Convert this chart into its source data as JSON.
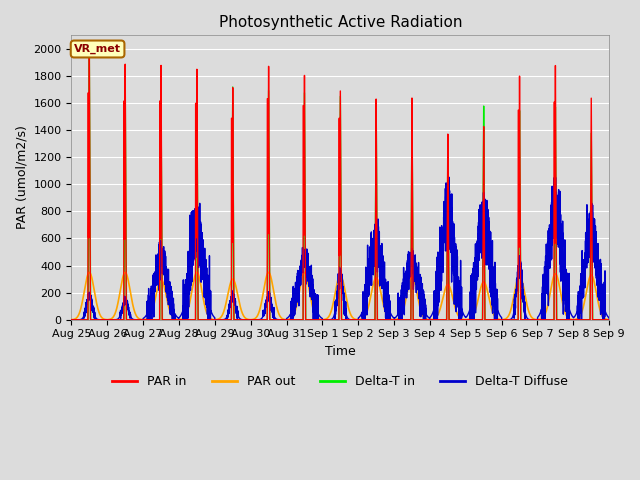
{
  "title": "Photosynthetic Active Radiation",
  "ylabel": "PAR (umol/m2/s)",
  "xlabel": "Time",
  "annotation": "VR_met",
  "legend_labels": [
    "PAR in",
    "PAR out",
    "Delta-T in",
    "Delta-T Diffuse"
  ],
  "background_color": "#dcdcdc",
  "ylim": [
    0,
    2100
  ],
  "figsize": [
    6.4,
    4.8
  ],
  "dpi": 100,
  "x_tick_labels": [
    "Aug 25",
    "Aug 26",
    "Aug 27",
    "Aug 28",
    "Aug 29",
    "Aug 30",
    "Aug 31",
    "Sep 1",
    "Sep 2",
    "Sep 3",
    "Sep 4",
    "Sep 5",
    "Sep 6",
    "Sep 7",
    "Sep 8",
    "Sep 9"
  ],
  "days": 15,
  "par_in_peaks": [
    1970,
    1900,
    1900,
    1880,
    1750,
    1920,
    1860,
    1750,
    1680,
    1680,
    1400,
    1450,
    1820,
    1890,
    1640
  ],
  "par_out_peaks": [
    350,
    350,
    300,
    350,
    300,
    350,
    350,
    330,
    310,
    320,
    260,
    280,
    330,
    340,
    330
  ],
  "delta_t_in_peaks": [
    1950,
    1780,
    1600,
    1750,
    1750,
    1730,
    1720,
    1700,
    1620,
    1560,
    1250,
    1600,
    1560,
    1580,
    1380
  ],
  "delta_t_diffuse_peaks": [
    180,
    145,
    450,
    700,
    175,
    175,
    430,
    330,
    580,
    440,
    780,
    760,
    400,
    800,
    650
  ],
  "par_in_color": "#ff0000",
  "par_out_color": "#ffa500",
  "delta_t_color": "#00ee00",
  "delta_t_diffuse_color": "#0000cc",
  "grid_color": "#ffffff",
  "title_fontsize": 11,
  "label_fontsize": 9,
  "tick_fontsize": 8,
  "legend_fontsize": 9
}
